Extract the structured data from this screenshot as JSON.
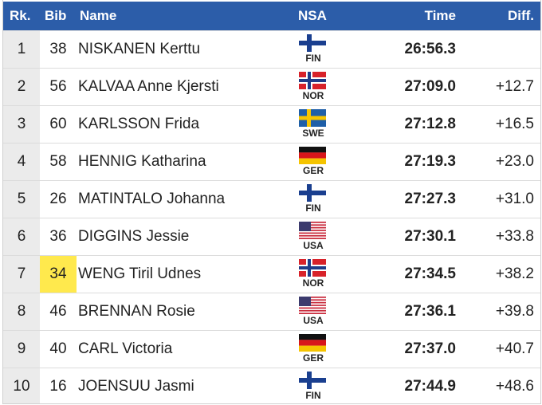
{
  "table": {
    "header": [
      "Rk.",
      "Bib",
      "Name",
      "NSA",
      "Time",
      "Diff."
    ],
    "rows": [
      {
        "rank": 1,
        "bib": 38,
        "name": "NISKANEN Kerttu",
        "nsa": "FIN",
        "time": "26:56.3"
      },
      {
        "rank": 2,
        "bib": 56,
        "name": "KALVAA Anne Kjersti",
        "nsa": "NOR",
        "time": "27:09.0",
        "diff": "+12.7"
      },
      {
        "rank": 3,
        "bib": 60,
        "name": "KARLSSON Frida",
        "nsa": "SWE",
        "time": "27:12.8",
        "diff": "+16.5"
      },
      {
        "rank": 4,
        "bib": 58,
        "name": "HENNIG Katharina",
        "nsa": "GER",
        "time": "27:19.3",
        "diff": "+23.0"
      },
      {
        "rank": 5,
        "bib": 26,
        "name": "MATINTALO Johanna",
        "nsa": "FIN",
        "time": "27:27.3",
        "diff": "+31.0"
      },
      {
        "rank": 6,
        "bib": 36,
        "name": "DIGGINS Jessie",
        "nsa": "USA",
        "time": "27:30.1",
        "diff": "+33.8"
      },
      {
        "rank": 7,
        "bib": 34,
        "name": "WENG Tiril Udnes",
        "nsa": "NOR",
        "time": "27:34.5",
        "diff": "+38.2",
        "highlighted": true
      },
      {
        "rank": 8,
        "bib": 46,
        "name": "BRENNAN Rosie",
        "nsa": "USA",
        "time": "27:36.1",
        "diff": "+39.8"
      },
      {
        "rank": 9,
        "bib": 40,
        "name": "CARL Victoria",
        "nsa": "GER",
        "time": "27:37.0",
        "diff": "+40.7"
      },
      {
        "rank": 10,
        "bib": 16,
        "name": "JOENSUU Jasmi",
        "nsa": "FIN",
        "time": "27:44.9",
        "diff": "+48.6"
      }
    ]
  }
}
